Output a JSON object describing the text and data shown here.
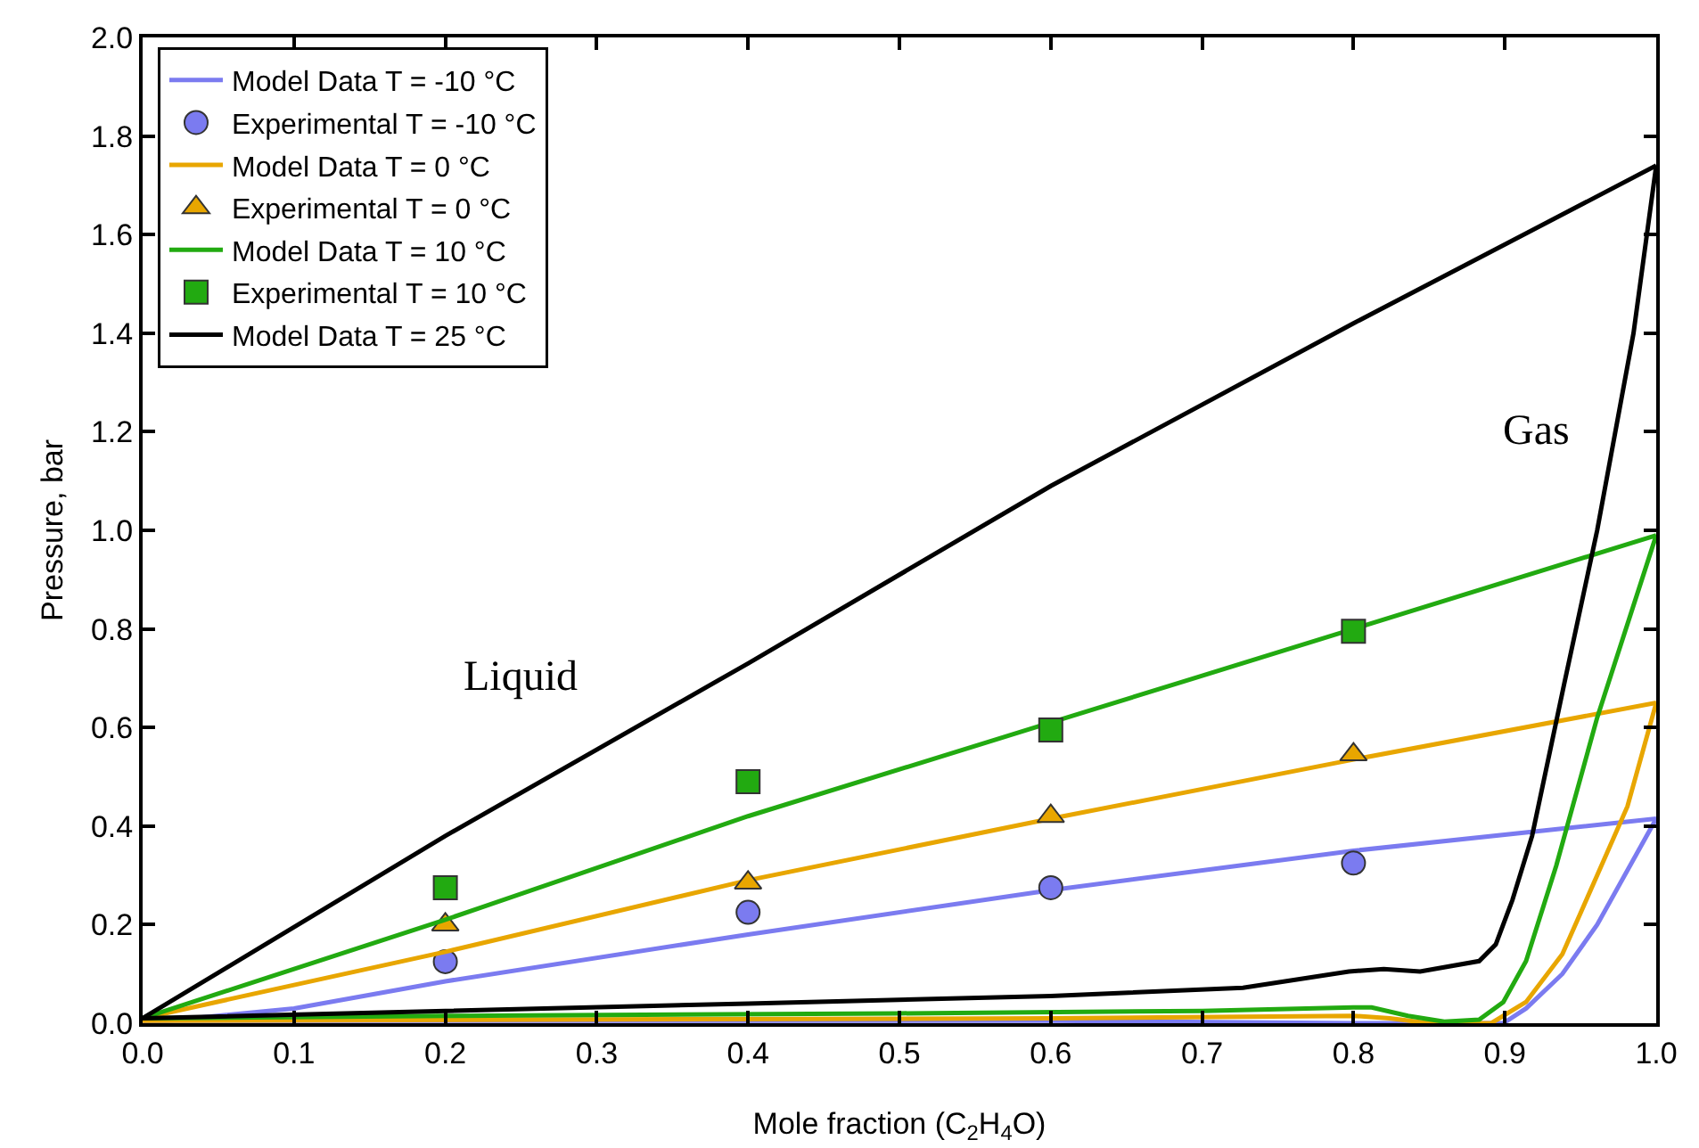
{
  "chart_data": {
    "type": "line",
    "xlabel": "Mole fraction (C$_{2}$H$_{4}$O)",
    "ylabel": "Pressure, bar",
    "xlim": [
      0,
      1
    ],
    "ylim": [
      0,
      2
    ],
    "xticks": [
      {
        "value": 0,
        "label": "0.0"
      },
      0.1,
      0.2,
      0.3,
      0.4,
      0.5,
      0.6,
      0.7,
      0.8,
      0.9,
      {
        "value": 1,
        "label": "1.0"
      }
    ],
    "yticks": [
      {
        "value": 0,
        "label": "0.0"
      },
      0.2,
      0.4,
      0.6,
      0.8,
      {
        "value": 1,
        "label": "1.0"
      },
      1.2,
      1.4,
      1.6,
      1.8,
      {
        "value": 2,
        "label": "2.0"
      }
    ],
    "grid": false,
    "legend": "top left",
    "line_style": "solid",
    "annotations": [
      "Liquid",
      "Gas"
    ],
    "series": [
      {
        "name": "Model Data T = -10 °C",
        "color": "#7b7bf0",
        "x": [
          0,
          0.1,
          0.2,
          0.4,
          0.6,
          0.8,
          1
        ],
        "values": [
          0,
          0.03,
          0.085,
          0.18,
          0.27,
          0.35,
          0.415
        ]
      },
      {
        "name": "Experimental T = -10 °C",
        "type": "scatter",
        "marker": "circle",
        "color": "#7b7bf0",
        "x": [
          0.2,
          0.4,
          0.6,
          0.8
        ],
        "values": [
          0.125,
          0.225,
          0.275,
          0.325
        ]
      },
      {
        "name": "Model Data T = 0 °C",
        "color": "#e8a600",
        "x": [
          0,
          0.2,
          0.4,
          0.6,
          0.8,
          1
        ],
        "values": [
          0.01,
          0.145,
          0.29,
          0.415,
          0.535,
          0.65
        ]
      },
      {
        "name": "Experimental T = 0 °C",
        "type": "scatter",
        "marker": "triangle",
        "color": "#e8a600",
        "x": [
          0.2,
          0.4,
          0.6,
          0.8
        ],
        "values": [
          0.2,
          0.285,
          0.42,
          0.545
        ]
      },
      {
        "name": "Model Data T = 10 °C",
        "color": "#22aa11",
        "x": [
          0,
          0.2,
          0.4,
          0.6,
          0.8,
          1
        ],
        "values": [
          0.01,
          0.21,
          0.42,
          0.61,
          0.8,
          0.99
        ]
      },
      {
        "name": "Experimental T = 10 °C",
        "type": "scatter",
        "marker": "square",
        "color": "#22aa11",
        "x": [
          0.2,
          0.4,
          0.6,
          0.8
        ],
        "values": [
          0.275,
          0.49,
          0.595,
          0.795
        ]
      },
      {
        "name": "Model Data T = 25 °C",
        "color": "#000000",
        "x": [
          0,
          0.2,
          0.4,
          0.6,
          0.8,
          1
        ],
        "values": [
          0.01,
          0.38,
          0.73,
          1.09,
          1.42,
          1.74
        ]
      },
      {
        "color": "#7b7bf0",
        "x": [
          0,
          0.6,
          0.8,
          0.828,
          0.852,
          0.875,
          0.899,
          0.914,
          0.938,
          0.961,
          1
        ],
        "values": [
          0.005,
          0.005,
          0,
          0,
          0,
          0,
          0,
          0.03,
          0.1,
          0.2,
          0.415
        ]
      },
      {
        "color": "#e8a600",
        "x": [
          0,
          0.6,
          0.8,
          0.824,
          0.85,
          0.877,
          0.891,
          0.914,
          0.938,
          0.961,
          0.981,
          1
        ],
        "values": [
          0.005,
          0.01,
          0.015,
          0.01,
          0,
          0,
          0,
          0.043,
          0.14,
          0.3,
          0.44,
          0.65
        ]
      },
      {
        "color": "#22aa11",
        "x": [
          0,
          0.2,
          0.5,
          0.7,
          0.8,
          0.812,
          0.836,
          0.86,
          0.883,
          0.899,
          0.914,
          0.934,
          0.961,
          1
        ],
        "values": [
          0.01,
          0.015,
          0.02,
          0.025,
          0.032,
          0.032,
          0.015,
          0.003,
          0.007,
          0.043,
          0.126,
          0.32,
          0.62,
          0.99
        ]
      },
      {
        "color": "#000000",
        "x": [
          0,
          0.2,
          0.4,
          0.6,
          0.727,
          0.797,
          0.82,
          0.844,
          0.883,
          0.894,
          0.905,
          0.918,
          0.94,
          0.961,
          0.985,
          1
        ],
        "values": [
          0.01,
          0.025,
          0.04,
          0.055,
          0.072,
          0.105,
          0.11,
          0.105,
          0.126,
          0.16,
          0.25,
          0.38,
          0.7,
          1,
          1.4,
          1.74
        ]
      }
    ]
  }
}
